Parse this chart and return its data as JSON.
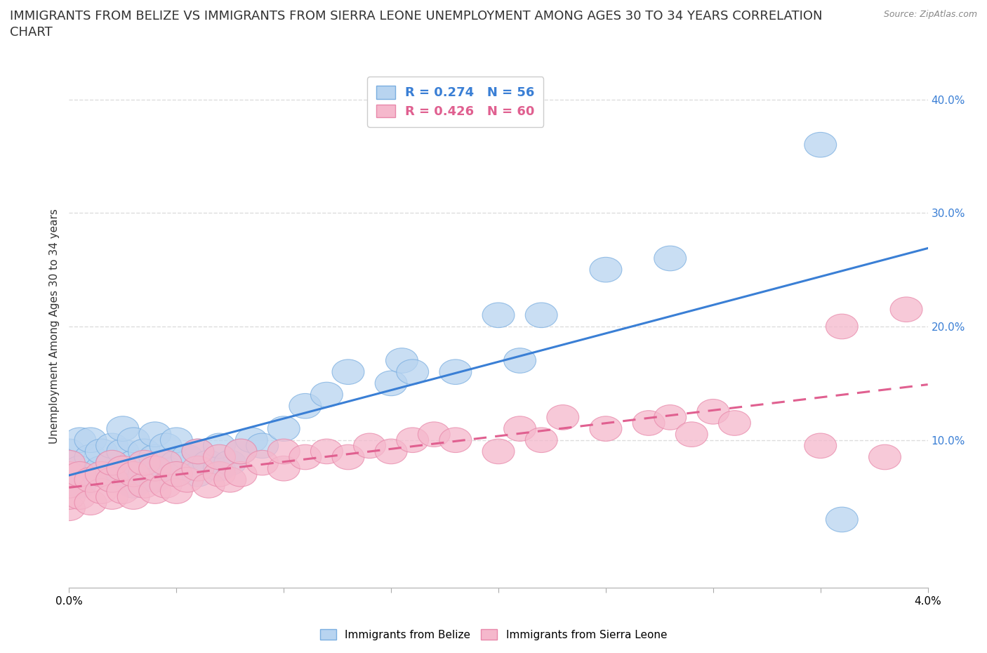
{
  "title": "IMMIGRANTS FROM BELIZE VS IMMIGRANTS FROM SIERRA LEONE UNEMPLOYMENT AMONG AGES 30 TO 34 YEARS CORRELATION\nCHART",
  "source": "Source: ZipAtlas.com",
  "ylabel": "Unemployment Among Ages 30 to 34 years",
  "xlim": [
    0.0,
    4.0
  ],
  "ylim": [
    -3.0,
    43.0
  ],
  "y_ticks_right": [
    10.0,
    20.0,
    30.0,
    40.0
  ],
  "y_tick_labels_right": [
    "10.0%",
    "20.0%",
    "30.0%",
    "40.0%"
  ],
  "legend_belize": "Immigrants from Belize",
  "legend_sierra": "Immigrants from Sierra Leone",
  "R_belize": 0.274,
  "N_belize": 56,
  "R_sierra": 0.426,
  "N_sierra": 60,
  "belize_color": "#b8d4f0",
  "sierra_color": "#f5b8cc",
  "belize_edge_color": "#7aaee0",
  "sierra_edge_color": "#e888aa",
  "belize_line_color": "#3a7fd5",
  "sierra_line_color": "#e06090",
  "background_color": "#ffffff",
  "grid_color": "#dddddd",
  "belize_scatter": {
    "x": [
      0.0,
      0.0,
      0.0,
      0.0,
      0.05,
      0.05,
      0.05,
      0.1,
      0.1,
      0.1,
      0.15,
      0.15,
      0.2,
      0.2,
      0.2,
      0.25,
      0.25,
      0.25,
      0.3,
      0.3,
      0.3,
      0.35,
      0.35,
      0.4,
      0.4,
      0.4,
      0.45,
      0.45,
      0.5,
      0.5,
      0.5,
      0.55,
      0.6,
      0.6,
      0.65,
      0.7,
      0.7,
      0.75,
      0.8,
      0.85,
      0.9,
      1.0,
      1.1,
      1.2,
      1.3,
      1.5,
      1.55,
      1.6,
      1.8,
      2.0,
      2.1,
      2.2,
      2.5,
      2.8,
      3.5,
      3.6
    ],
    "y": [
      6.0,
      7.0,
      8.0,
      9.0,
      6.0,
      7.5,
      10.0,
      7.0,
      8.5,
      10.0,
      7.5,
      9.0,
      6.5,
      8.0,
      9.5,
      7.0,
      9.0,
      11.0,
      6.0,
      8.0,
      10.0,
      7.0,
      9.0,
      6.5,
      8.5,
      10.5,
      7.5,
      9.5,
      7.0,
      8.0,
      10.0,
      8.5,
      7.0,
      9.0,
      8.0,
      7.5,
      9.5,
      8.0,
      9.0,
      10.0,
      9.5,
      11.0,
      13.0,
      14.0,
      16.0,
      15.0,
      17.0,
      16.0,
      16.0,
      21.0,
      17.0,
      21.0,
      25.0,
      26.0,
      36.0,
      3.0
    ]
  },
  "sierra_scatter": {
    "x": [
      0.0,
      0.0,
      0.0,
      0.0,
      0.0,
      0.05,
      0.05,
      0.1,
      0.1,
      0.15,
      0.15,
      0.2,
      0.2,
      0.2,
      0.25,
      0.25,
      0.3,
      0.3,
      0.35,
      0.35,
      0.4,
      0.4,
      0.45,
      0.45,
      0.5,
      0.5,
      0.55,
      0.6,
      0.6,
      0.65,
      0.7,
      0.7,
      0.75,
      0.8,
      0.8,
      0.9,
      1.0,
      1.0,
      1.1,
      1.2,
      1.3,
      1.4,
      1.5,
      1.6,
      1.7,
      1.8,
      2.0,
      2.1,
      2.2,
      2.3,
      2.5,
      2.7,
      2.8,
      2.9,
      3.0,
      3.1,
      3.5,
      3.6,
      3.8,
      3.9
    ],
    "y": [
      4.0,
      5.0,
      6.0,
      7.0,
      8.0,
      5.0,
      7.0,
      4.5,
      6.5,
      5.5,
      7.0,
      5.0,
      6.5,
      8.0,
      5.5,
      7.5,
      5.0,
      7.0,
      6.0,
      8.0,
      5.5,
      7.5,
      6.0,
      8.0,
      5.5,
      7.0,
      6.5,
      7.5,
      9.0,
      6.0,
      7.0,
      8.5,
      6.5,
      7.0,
      9.0,
      8.0,
      7.5,
      9.0,
      8.5,
      9.0,
      8.5,
      9.5,
      9.0,
      10.0,
      10.5,
      10.0,
      9.0,
      11.0,
      10.0,
      12.0,
      11.0,
      11.5,
      12.0,
      10.5,
      12.5,
      11.5,
      9.5,
      20.0,
      8.5,
      21.5
    ]
  },
  "title_fontsize": 13,
  "axis_label_fontsize": 11,
  "tick_fontsize": 11
}
